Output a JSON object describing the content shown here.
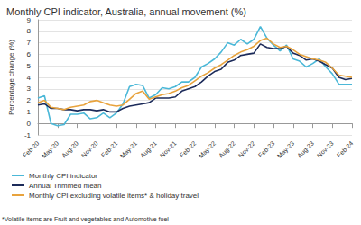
{
  "chart_data": {
    "type": "line",
    "title": "Monthly CPI indicator, Australia, annual movement (%)",
    "y_label": "Percentage change (%)",
    "footnote": "*Volatile items are Fruit and vegetables and Automotive fuel",
    "categories": [
      "Feb-20",
      null,
      null,
      "May-20",
      null,
      null,
      "Aug-20",
      null,
      null,
      "Nov-20",
      null,
      null,
      "Feb-21",
      null,
      null,
      "May-21",
      null,
      null,
      "Aug-21",
      null,
      null,
      "Nov-21",
      null,
      null,
      "Feb-22",
      null,
      null,
      "May-22",
      null,
      null,
      "Aug-22",
      null,
      null,
      "Nov-22",
      null,
      null,
      "Feb-23",
      null,
      null,
      "May-23",
      null,
      null,
      "Aug-23",
      null,
      null,
      "Nov-23",
      null,
      null,
      "Feb-24"
    ],
    "series": [
      {
        "name": "Monthly CPI indicator",
        "color": "#4bb8d8",
        "values": [
          2.2,
          2.4,
          0.0,
          -0.2,
          -0.1,
          0.8,
          0.8,
          0.9,
          0.4,
          0.5,
          0.9,
          0.5,
          0.9,
          1.7,
          3.2,
          3.4,
          3.3,
          2.2,
          2.5,
          3.1,
          3.0,
          3.2,
          3.6,
          3.6,
          4.0,
          4.9,
          5.2,
          5.6,
          6.2,
          7.0,
          6.8,
          7.3,
          6.9,
          7.3,
          8.4,
          7.4,
          6.8,
          6.3,
          6.8,
          5.6,
          5.4,
          4.9,
          5.2,
          5.6,
          4.9,
          4.3,
          3.4,
          3.4,
          3.4
        ]
      },
      {
        "name": "Annual Trimmed mean",
        "color": "#1c2b5a",
        "values": [
          1.6,
          1.7,
          1.3,
          1.3,
          1.2,
          1.2,
          1.1,
          1.2,
          1.2,
          1.1,
          1.2,
          1.0,
          1.0,
          1.3,
          1.5,
          1.6,
          1.7,
          1.8,
          2.2,
          2.2,
          2.2,
          2.3,
          2.8,
          3.0,
          3.2,
          3.6,
          4.1,
          4.5,
          4.7,
          5.3,
          5.5,
          5.9,
          6.0,
          6.1,
          6.9,
          6.6,
          6.5,
          6.5,
          6.7,
          6.1,
          5.9,
          5.5,
          5.6,
          5.4,
          5.1,
          4.8,
          4.0,
          3.8,
          3.9
        ]
      },
      {
        "name": "Monthly CPI excluding volatile items* & holiday travel",
        "color": "#e8a33d",
        "values": [
          1.8,
          2.0,
          1.4,
          1.3,
          1.2,
          1.4,
          1.5,
          1.6,
          1.9,
          2.0,
          1.8,
          1.6,
          1.5,
          1.6,
          2.1,
          2.6,
          2.8,
          2.1,
          2.3,
          2.5,
          2.6,
          2.8,
          3.1,
          3.3,
          3.7,
          4.1,
          4.4,
          4.8,
          5.1,
          5.5,
          5.9,
          6.2,
          6.4,
          6.7,
          7.2,
          7.4,
          6.9,
          6.6,
          6.7,
          6.4,
          6.0,
          5.8,
          5.6,
          5.5,
          5.3,
          4.8,
          4.2,
          4.1,
          4.0
        ]
      }
    ],
    "ylim": [
      -1,
      9
    ],
    "yticks": [
      -1,
      0,
      1,
      2,
      3,
      4,
      5,
      6,
      7,
      8,
      9
    ],
    "grid": true,
    "legend": "bottom"
  }
}
